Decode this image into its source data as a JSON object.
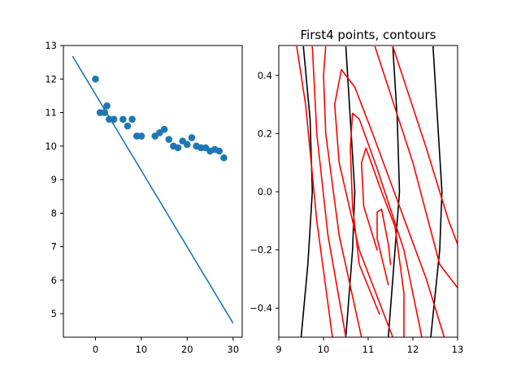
{
  "chart_data": [
    {
      "type": "scatter",
      "title": "",
      "xlabel": "",
      "ylabel": "",
      "xlim": [
        -7,
        32
      ],
      "ylim": [
        4.3,
        13.0
      ],
      "xticks": [
        0,
        10,
        20,
        30
      ],
      "yticks": [
        5,
        6,
        7,
        8,
        9,
        10,
        11,
        12,
        13
      ],
      "grid": false,
      "legend": "none",
      "series": [
        {
          "kind": "scatter",
          "color": "#1f77b4",
          "x": [
            0,
            1,
            2,
            2.5,
            3,
            4,
            6,
            7,
            8,
            9,
            10,
            13,
            14,
            15,
            16,
            17,
            18,
            19,
            20,
            21,
            22,
            23,
            24,
            25,
            26,
            27,
            28
          ],
          "y": [
            12.0,
            11.0,
            11.0,
            11.2,
            10.8,
            10.8,
            10.8,
            10.6,
            10.8,
            10.3,
            10.3,
            10.3,
            10.4,
            10.5,
            10.2,
            10.0,
            9.95,
            10.15,
            10.05,
            10.25,
            10.0,
            9.95,
            9.95,
            9.85,
            9.9,
            9.85,
            9.65
          ]
        },
        {
          "kind": "line",
          "color": "#1f77b4",
          "x": [
            -5,
            30
          ],
          "y": [
            12.68,
            4.72
          ]
        }
      ]
    },
    {
      "type": "contour",
      "title": "First4 points, contours",
      "xlabel": "",
      "ylabel": "",
      "xlim": [
        9,
        13
      ],
      "ylim": [
        -0.5,
        0.5
      ],
      "xticks": [
        9,
        10,
        11,
        12,
        13
      ],
      "yticks": [
        -0.4,
        -0.2,
        0.0,
        0.2,
        0.4
      ],
      "ytick_labels": [
        "−0.4",
        "−0.2",
        "0.0",
        "0.2",
        "0.4"
      ],
      "grid": false,
      "legend": "none",
      "series": [
        {
          "name": "",
          "color": "#000000",
          "lines": [
            [
              [
                9.5,
                -0.5
              ],
              [
                9.65,
                -0.25
              ],
              [
                9.75,
                0.0
              ],
              [
                9.7,
                0.25
              ],
              [
                9.55,
                0.5
              ]
            ],
            [
              [
                10.5,
                -0.5
              ],
              [
                10.65,
                -0.2
              ],
              [
                10.7,
                0.0
              ],
              [
                10.6,
                0.25
              ],
              [
                10.5,
                0.5
              ]
            ],
            [
              [
                11.45,
                -0.5
              ],
              [
                11.6,
                -0.2
              ],
              [
                11.7,
                0.0
              ],
              [
                11.65,
                0.25
              ],
              [
                11.55,
                0.5
              ]
            ],
            [
              [
                12.4,
                -0.5
              ],
              [
                12.6,
                -0.2
              ],
              [
                12.65,
                0.0
              ],
              [
                12.55,
                0.25
              ],
              [
                12.45,
                0.5
              ]
            ]
          ]
        },
        {
          "name": "",
          "color": "#ff0000",
          "lines": [
            [
              [
                10.2,
                -0.5
              ],
              [
                9.85,
                -0.1
              ],
              [
                9.6,
                0.3
              ],
              [
                9.4,
                0.5
              ]
            ],
            [
              [
                10.5,
                -0.5
              ],
              [
                10.1,
                -0.15
              ],
              [
                9.85,
                0.2
              ],
              [
                9.75,
                0.5
              ]
            ],
            [
              [
                10.85,
                -0.5
              ],
              [
                10.35,
                -0.15
              ],
              [
                10.05,
                0.2
              ],
              [
                10.0,
                0.4
              ],
              [
                10.05,
                0.5
              ]
            ],
            [
              [
                11.55,
                -0.5
              ],
              [
                10.8,
                -0.2
              ],
              [
                10.35,
                0.1
              ],
              [
                10.25,
                0.3
              ],
              [
                10.4,
                0.42
              ],
              [
                10.7,
                0.36
              ],
              [
                11.1,
                0.2
              ],
              [
                11.7,
                -0.05
              ],
              [
                12.3,
                -0.3
              ],
              [
                12.7,
                -0.5
              ]
            ],
            [
              [
                11.25,
                -0.42
              ],
              [
                10.8,
                -0.25
              ],
              [
                10.65,
                -0.05
              ],
              [
                10.6,
                0.15
              ],
              [
                10.65,
                0.27
              ],
              [
                10.8,
                0.25
              ],
              [
                11.2,
                0.08
              ],
              [
                11.8,
                -0.2
              ],
              [
                12.2,
                -0.5
              ]
            ],
            [
              [
                11.2,
                -0.2
              ],
              [
                10.9,
                -0.05
              ],
              [
                10.85,
                0.1
              ],
              [
                10.95,
                0.15
              ],
              [
                11.3,
                0.0
              ],
              [
                11.6,
                -0.12
              ],
              [
                11.8,
                -0.35
              ],
              [
                11.8,
                -0.5
              ]
            ],
            [
              [
                11.45,
                -0.32
              ],
              [
                11.2,
                -0.16
              ],
              [
                11.2,
                -0.07
              ],
              [
                11.3,
                -0.06
              ],
              [
                11.45,
                -0.18
              ],
              [
                11.5,
                -0.25
              ]
            ],
            [
              [
                11.15,
                0.5
              ],
              [
                12.0,
                0.1
              ],
              [
                12.6,
                -0.25
              ],
              [
                13.0,
                -0.33
              ]
            ],
            [
              [
                11.55,
                0.5
              ],
              [
                12.3,
                0.15
              ],
              [
                12.8,
                -0.1
              ],
              [
                13.0,
                -0.18
              ]
            ]
          ]
        }
      ]
    }
  ]
}
